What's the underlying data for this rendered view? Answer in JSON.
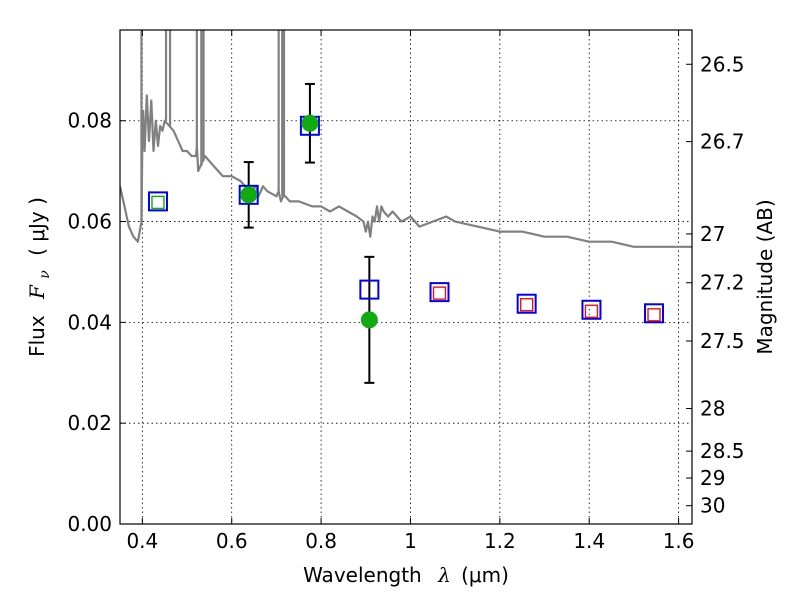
{
  "chart_data": {
    "type": "scatter",
    "title": "",
    "xlabel": {
      "prefix": "Wavelength",
      "symbol": "λ",
      "unit": "(μm)"
    },
    "ylabel": {
      "prefix": "Flux",
      "symbol": "F",
      "symbol_sub": "ν",
      "unit": "( μJy )"
    },
    "y2label": "Magnitude (AB)",
    "xlim": [
      0.35,
      1.63
    ],
    "ylim": [
      0.0,
      0.098
    ],
    "grid": true,
    "legend": "none",
    "xticks": [
      {
        "value": 0.4,
        "label": "0.4"
      },
      {
        "value": 0.6,
        "label": "0.6"
      },
      {
        "value": 0.8,
        "label": "0.8"
      },
      {
        "value": 1.0,
        "label": "1"
      },
      {
        "value": 1.2,
        "label": "1.2"
      },
      {
        "value": 1.4,
        "label": "1.4"
      },
      {
        "value": 1.6,
        "label": "1.6"
      }
    ],
    "yticks": [
      {
        "value": 0.0,
        "label": "0.00"
      },
      {
        "value": 0.02,
        "label": "0.02"
      },
      {
        "value": 0.04,
        "label": "0.04"
      },
      {
        "value": 0.06,
        "label": "0.06"
      },
      {
        "value": 0.08,
        "label": "0.08"
      }
    ],
    "y2ticks": [
      {
        "mag": 26.5,
        "label": "26.5"
      },
      {
        "mag": 26.7,
        "label": "26.7"
      },
      {
        "mag": 27.0,
        "label": "27"
      },
      {
        "mag": 27.2,
        "label": "27.2"
      },
      {
        "mag": 27.5,
        "label": "27.5"
      },
      {
        "mag": 28.0,
        "label": "28"
      },
      {
        "mag": 28.5,
        "label": "28.5"
      },
      {
        "mag": 29.0,
        "label": "29"
      },
      {
        "mag": 30.0,
        "label": "30"
      }
    ],
    "colors": {
      "model": "#808080",
      "observed": "#11aa11",
      "errorbar": "#000000",
      "box": "#0000ee",
      "inner_green": "#11aa11",
      "inner_red": "#ee1111"
    },
    "series": [
      {
        "kind": "model_sed",
        "x": [
          0.35,
          0.36,
          0.37,
          0.38,
          0.39,
          0.398,
          0.4,
          0.402,
          0.405,
          0.41,
          0.415,
          0.42,
          0.425,
          0.43,
          0.435,
          0.44,
          0.445,
          0.45,
          0.46,
          0.47,
          0.48,
          0.49,
          0.5,
          0.51,
          0.52,
          0.522,
          0.525,
          0.53,
          0.535,
          0.54,
          0.55,
          0.56,
          0.57,
          0.58,
          0.6,
          0.62,
          0.64,
          0.655,
          0.66,
          0.665,
          0.67,
          0.68,
          0.7,
          0.705,
          0.71,
          0.715,
          0.72,
          0.73,
          0.75,
          0.78,
          0.8,
          0.82,
          0.84,
          0.86,
          0.88,
          0.895,
          0.9,
          0.905,
          0.91,
          0.915,
          0.92,
          0.925,
          0.93,
          0.935,
          0.94,
          0.95,
          0.96,
          0.98,
          1.0,
          1.02,
          1.05,
          1.08,
          1.1,
          1.15,
          1.2,
          1.25,
          1.3,
          1.35,
          1.4,
          1.45,
          1.5,
          1.55,
          1.6,
          1.63
        ],
        "y": [
          0.067,
          0.063,
          0.059,
          0.057,
          0.056,
          0.06,
          0.075,
          0.082,
          0.074,
          0.085,
          0.076,
          0.084,
          0.074,
          0.08,
          0.075,
          0.079,
          0.078,
          0.08,
          0.079,
          0.078,
          0.076,
          0.074,
          0.074,
          0.073,
          0.073,
          0.075,
          0.07,
          0.071,
          0.072,
          0.073,
          0.072,
          0.071,
          0.07,
          0.069,
          0.069,
          0.068,
          0.066,
          0.067,
          0.065,
          0.066,
          0.067,
          0.066,
          0.065,
          0.066,
          0.064,
          0.065,
          0.065,
          0.064,
          0.064,
          0.063,
          0.063,
          0.062,
          0.063,
          0.062,
          0.061,
          0.06,
          0.058,
          0.06,
          0.057,
          0.061,
          0.06,
          0.063,
          0.06,
          0.063,
          0.062,
          0.061,
          0.062,
          0.06,
          0.061,
          0.059,
          0.06,
          0.061,
          0.06,
          0.059,
          0.058,
          0.058,
          0.057,
          0.057,
          0.056,
          0.056,
          0.055,
          0.055,
          0.055,
          0.055
        ],
        "spikes": [
          {
            "x": 0.398,
            "y0": 0.06,
            "y1": 0.098
          },
          {
            "x": 0.453,
            "y0": 0.08,
            "y1": 0.098
          },
          {
            "x": 0.462,
            "y0": 0.079,
            "y1": 0.098
          },
          {
            "x": 0.522,
            "y0": 0.075,
            "y1": 0.098
          },
          {
            "x": 0.532,
            "y0": 0.071,
            "y1": 0.098
          },
          {
            "x": 0.537,
            "y0": 0.072,
            "y1": 0.098
          },
          {
            "x": 0.705,
            "y0": 0.066,
            "y1": 0.098
          },
          {
            "x": 0.713,
            "y0": 0.065,
            "y1": 0.098
          },
          {
            "x": 0.717,
            "y0": 0.065,
            "y1": 0.098
          }
        ]
      },
      {
        "kind": "observed",
        "x": [
          0.638,
          0.775,
          0.908
        ],
        "y": [
          0.0653,
          0.0795,
          0.0405
        ],
        "yerr": [
          0.0065,
          0.0078,
          0.0125
        ]
      },
      {
        "kind": "model_band_blue_box",
        "x": [
          0.435,
          0.638,
          0.775,
          0.908,
          1.065,
          1.26,
          1.405,
          1.545
        ],
        "y": [
          0.064,
          0.0653,
          0.079,
          0.0465,
          0.046,
          0.0437,
          0.0425,
          0.0418
        ]
      },
      {
        "kind": "inner_box_green",
        "x": [
          0.435
        ],
        "y": [
          0.0638
        ]
      },
      {
        "kind": "inner_box_red",
        "x": [
          1.065,
          1.26,
          1.405,
          1.545
        ],
        "y": [
          0.0458,
          0.0435,
          0.0422,
          0.0415
        ]
      }
    ]
  }
}
